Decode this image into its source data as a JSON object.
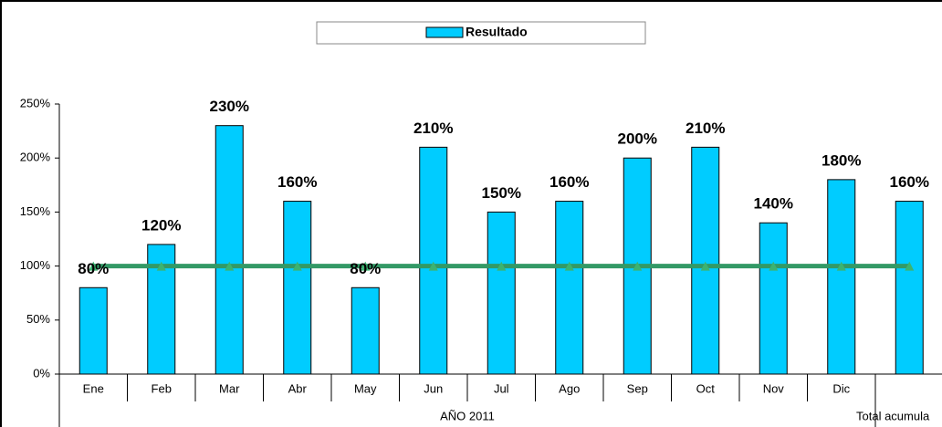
{
  "chart_data": {
    "type": "bar",
    "categories": [
      "Ene",
      "Feb",
      "Mar",
      "Abr",
      "May",
      "Jun",
      "Jul",
      "Ago",
      "Sep",
      "Oct",
      "Nov",
      "Dic",
      "Total acumula"
    ],
    "group_label": "AÑO 2011",
    "series": [
      {
        "name": "Resultado",
        "color": "#00ccff",
        "values": [
          80,
          120,
          230,
          160,
          80,
          210,
          150,
          160,
          200,
          210,
          140,
          180,
          160
        ],
        "value_labels": [
          "80%",
          "120%",
          "230%",
          "160%",
          "80%",
          "210%",
          "150%",
          "160%",
          "200%",
          "210%",
          "140%",
          "180%",
          "160%"
        ]
      },
      {
        "type": "line",
        "color": "#339966",
        "values": [
          100,
          100,
          100,
          100,
          100,
          100,
          100,
          100,
          100,
          100,
          100,
          100,
          100
        ]
      }
    ],
    "ylim": [
      0,
      250
    ],
    "yticks": [
      {
        "value": 0,
        "label": "0%"
      },
      {
        "value": 50,
        "label": "50%"
      },
      {
        "value": 100,
        "label": "100%"
      },
      {
        "value": 150,
        "label": "150%"
      },
      {
        "value": 200,
        "label": "200%"
      },
      {
        "value": 250,
        "label": "250%"
      }
    ],
    "legend": "top"
  }
}
